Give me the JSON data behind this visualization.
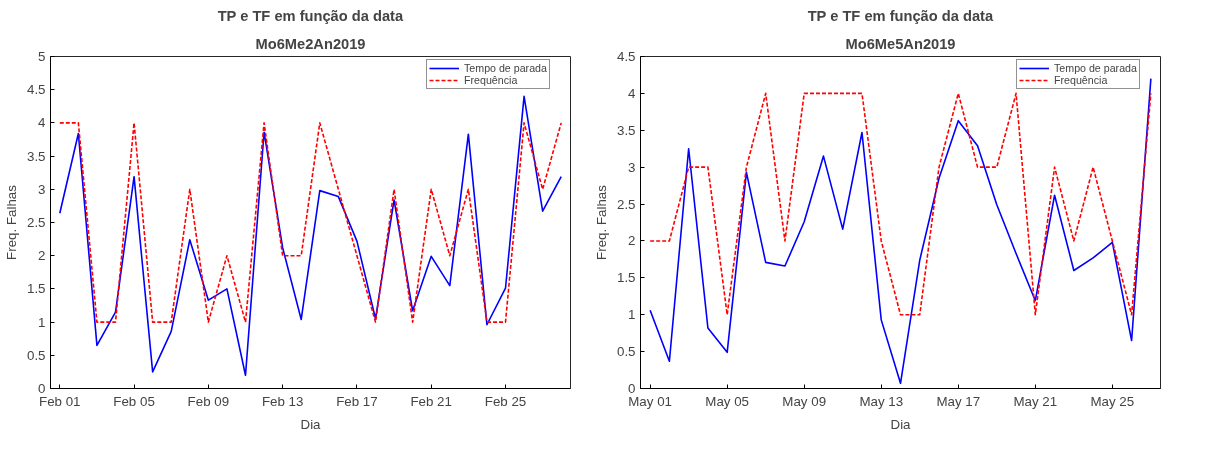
{
  "chart_data": [
    {
      "type": "line",
      "title": "TP e TF em função da data",
      "subtitle": "Mo6Me2An2019",
      "xlabel": "Dia",
      "ylabel": "Freq. Falhas",
      "x": [
        "2019-02-01",
        "2019-02-02",
        "2019-02-03",
        "2019-02-04",
        "2019-02-05",
        "2019-02-06",
        "2019-02-07",
        "2019-02-08",
        "2019-02-09",
        "2019-02-10",
        "2019-02-11",
        "2019-02-12",
        "2019-02-13",
        "2019-02-14",
        "2019-02-15",
        "2019-02-16",
        "2019-02-17",
        "2019-02-18",
        "2019-02-19",
        "2019-02-20",
        "2019-02-21",
        "2019-02-22",
        "2019-02-23",
        "2019-02-24",
        "2019-02-25",
        "2019-02-26",
        "2019-02-27",
        "2019-02-28"
      ],
      "series": [
        {
          "name": "Tempo de parada",
          "color": "#0000ff",
          "line_style": "solid",
          "values": [
            2.64,
            3.84,
            0.65,
            1.15,
            3.19,
            0.25,
            0.86,
            2.24,
            1.33,
            1.5,
            0.2,
            3.86,
            2.12,
            1.04,
            2.98,
            2.89,
            2.22,
            1.05,
            2.84,
            1.17,
            1.99,
            1.55,
            3.83,
            0.96,
            1.51,
            4.4,
            2.67,
            3.19
          ]
        },
        {
          "name": "Frequência",
          "color": "#ff0000",
          "line_style": "dashed",
          "values": [
            4,
            4,
            1,
            1,
            4,
            1,
            1,
            3,
            1,
            2,
            1,
            4,
            2,
            2,
            4,
            3,
            2,
            1,
            3,
            1,
            3,
            2,
            3,
            1,
            1,
            4,
            3,
            4
          ]
        }
      ],
      "xlim": [
        "2019-01-31T12:00",
        "2019-02-28T12:00"
      ],
      "xticks": [
        {
          "value": "2019-02-01",
          "label": "Feb 01"
        },
        {
          "value": "2019-02-05",
          "label": "Feb 05"
        },
        {
          "value": "2019-02-09",
          "label": "Feb 09"
        },
        {
          "value": "2019-02-13",
          "label": "Feb 13"
        },
        {
          "value": "2019-02-17",
          "label": "Feb 17"
        },
        {
          "value": "2019-02-21",
          "label": "Feb 21"
        },
        {
          "value": "2019-02-25",
          "label": "Feb 25"
        }
      ],
      "ylim": [
        0,
        5
      ],
      "yticks": [
        0,
        0.5,
        1,
        1.5,
        2,
        2.5,
        3,
        3.5,
        4,
        4.5,
        5
      ],
      "grid": false,
      "legend": "top right",
      "marker": "none"
    },
    {
      "type": "line",
      "title": "TP e TF em função da data",
      "subtitle": "Mo6Me5An2019",
      "xlabel": "Dia",
      "ylabel": "Freq. Falhas",
      "x": [
        "2019-05-01",
        "2019-05-02",
        "2019-05-03",
        "2019-05-04",
        "2019-05-05",
        "2019-05-06",
        "2019-05-07",
        "2019-05-08",
        "2019-05-09",
        "2019-05-10",
        "2019-05-11",
        "2019-05-12",
        "2019-05-13",
        "2019-05-14",
        "2019-05-15",
        "2019-05-16",
        "2019-05-17",
        "2019-05-18",
        "2019-05-19",
        "2019-05-20",
        "2019-05-21",
        "2019-05-22",
        "2019-05-23",
        "2019-05-24",
        "2019-05-25",
        "2019-05-26",
        "2019-05-27"
      ],
      "series": [
        {
          "name": "Tempo de parada",
          "color": "#0000ff",
          "line_style": "solid",
          "values": [
            1.06,
            0.37,
            3.25,
            0.82,
            0.49,
            2.93,
            1.71,
            1.66,
            2.26,
            3.15,
            2.16,
            3.47,
            0.93,
            0.07,
            1.74,
            2.85,
            3.63,
            3.29,
            2.49,
            1.83,
            1.19,
            2.62,
            1.6,
            1.77,
            1.98,
            0.65,
            4.2
          ]
        },
        {
          "name": "Frequência",
          "color": "#ff0000",
          "line_style": "dashed",
          "values": [
            2,
            2,
            3,
            3,
            1,
            3,
            4,
            2,
            4,
            4,
            4,
            4,
            2,
            1,
            1,
            3,
            4,
            3,
            3,
            4,
            1,
            3,
            2,
            3,
            2,
            1,
            4
          ]
        }
      ],
      "xlim": [
        "2019-04-30T12:00",
        "2019-05-27T12:00"
      ],
      "xticks": [
        {
          "value": "2019-05-01",
          "label": "May 01"
        },
        {
          "value": "2019-05-05",
          "label": "May 05"
        },
        {
          "value": "2019-05-09",
          "label": "May 09"
        },
        {
          "value": "2019-05-13",
          "label": "May 13"
        },
        {
          "value": "2019-05-17",
          "label": "May 17"
        },
        {
          "value": "2019-05-21",
          "label": "May 21"
        },
        {
          "value": "2019-05-25",
          "label": "May 25"
        }
      ],
      "ylim": [
        0,
        4.5
      ],
      "yticks": [
        0,
        0.5,
        1,
        1.5,
        2,
        2.5,
        3,
        3.5,
        4,
        4.5
      ],
      "grid": false,
      "legend": "top right",
      "marker": "none"
    }
  ]
}
